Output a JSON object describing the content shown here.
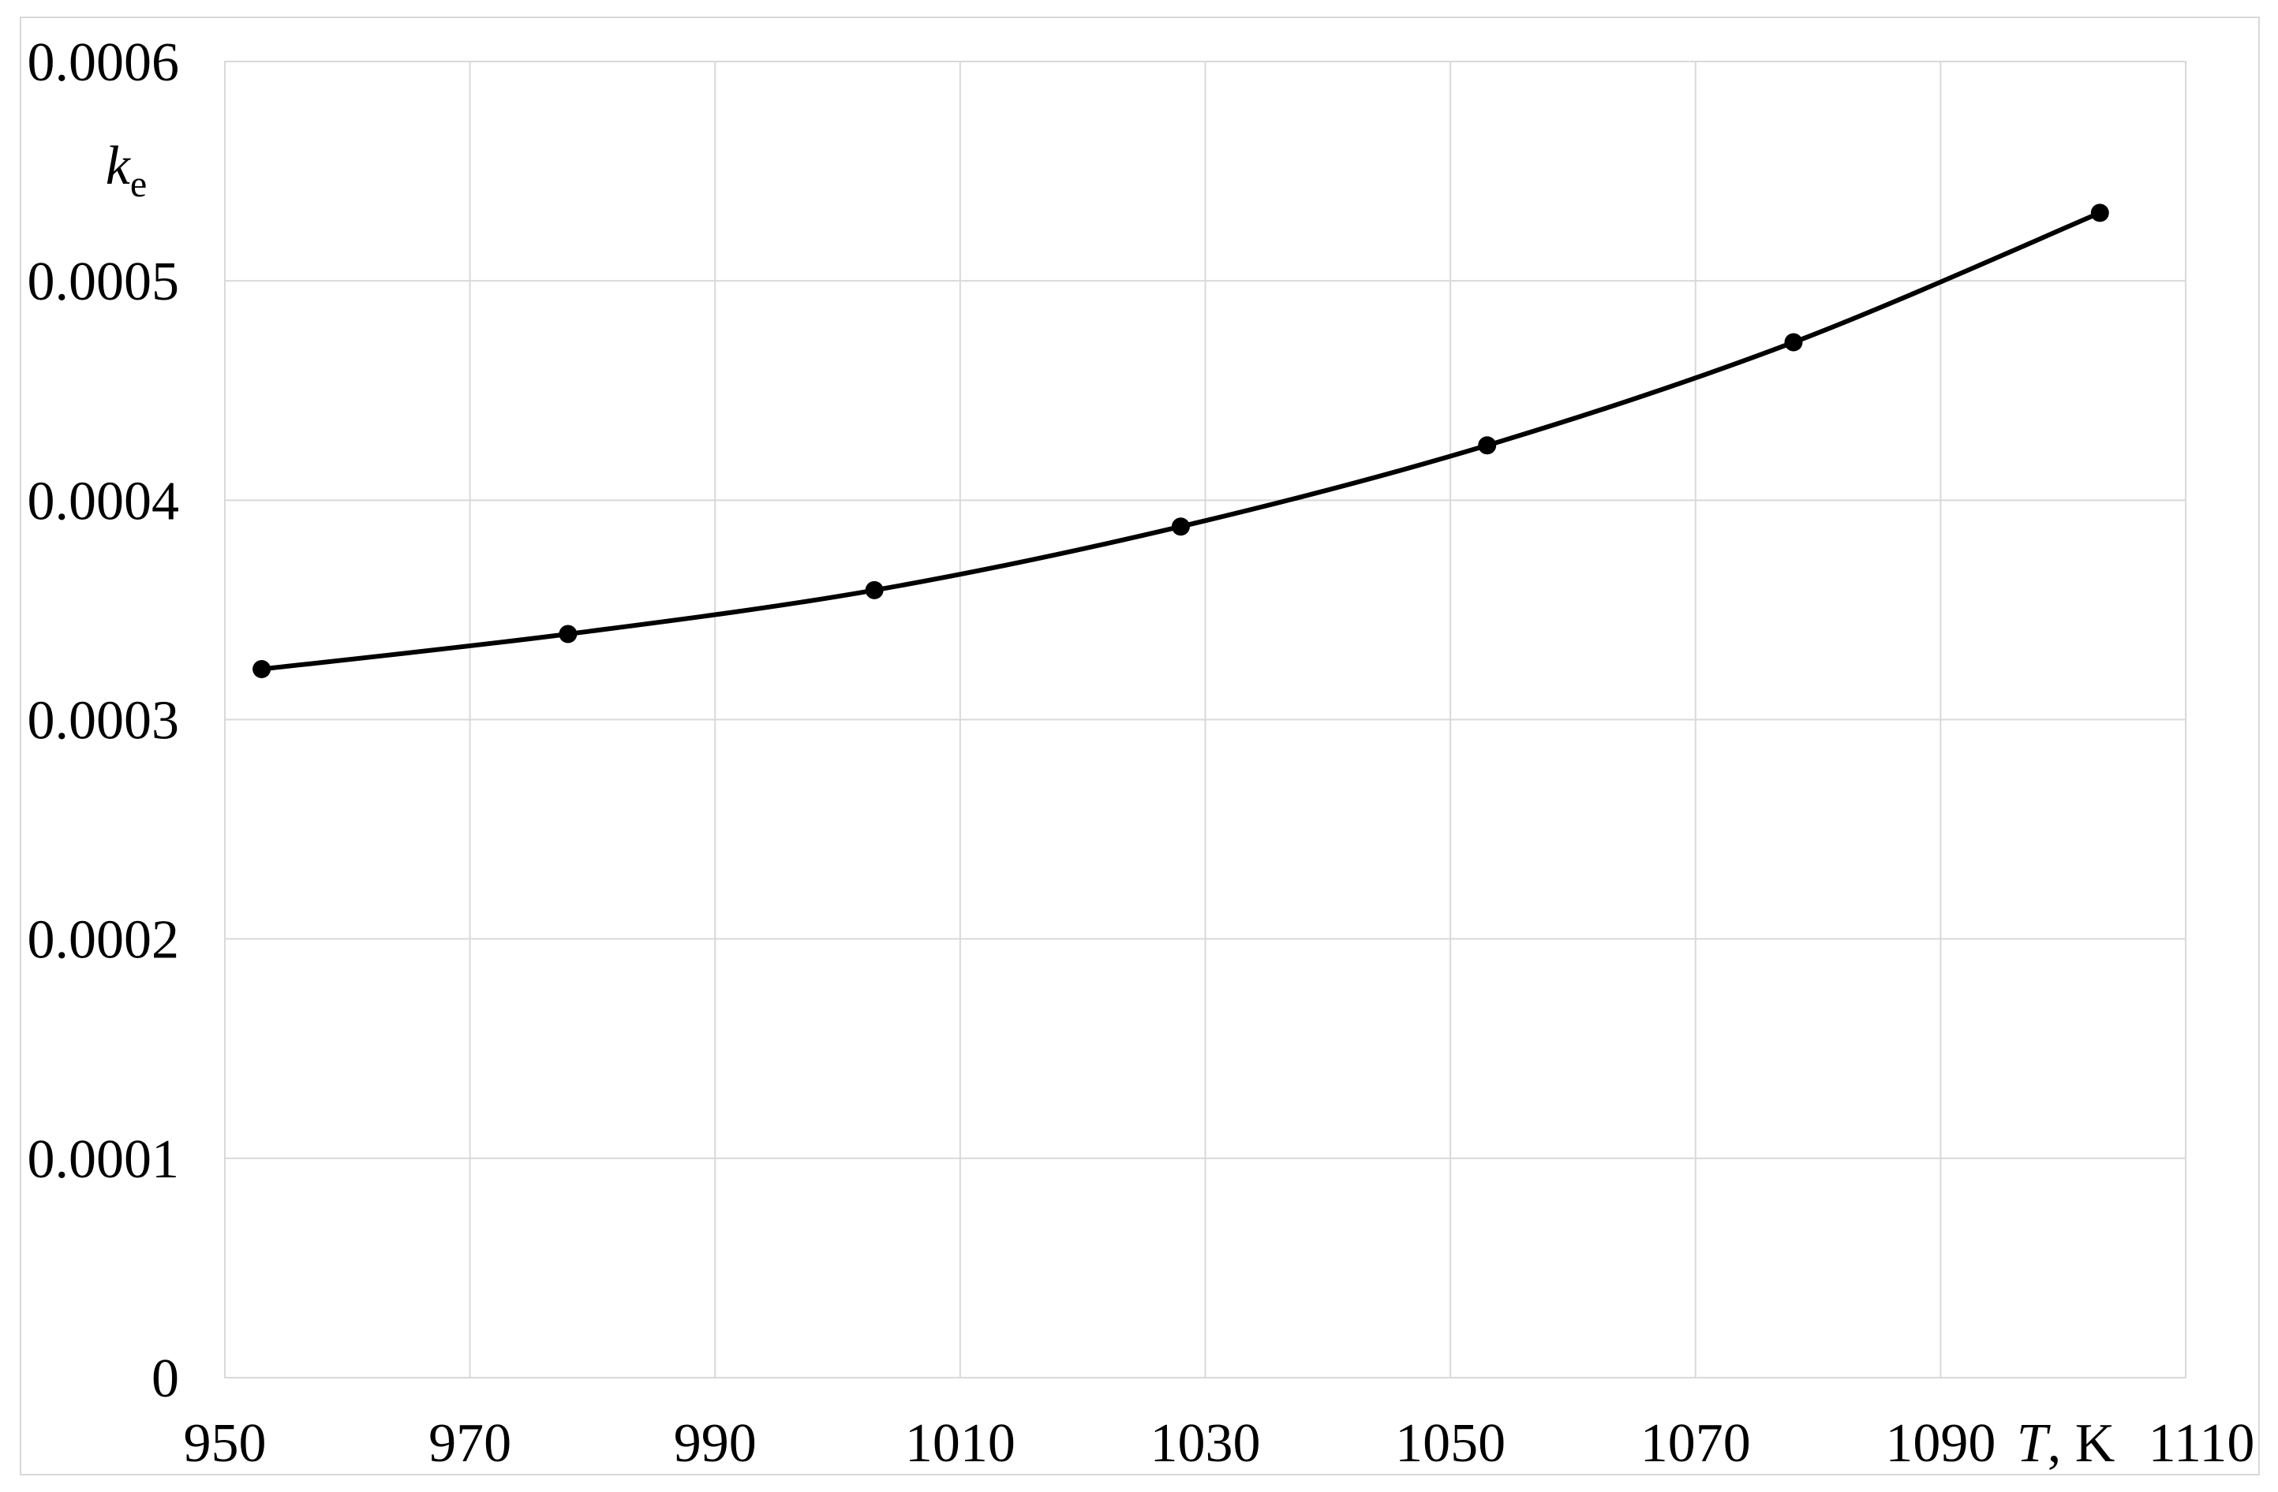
{
  "figure": {
    "background": "#ffffff",
    "outer_border_color": "#d9d9d9",
    "grid_color": "#d9d9d9",
    "plot_border_color": "#d9d9d9",
    "line_color": "#000000",
    "marker_color": "#000000",
    "text_color": "#000000"
  },
  "chart_data": {
    "type": "line",
    "title": "",
    "xlabel": "T, K",
    "ylabel": "ke",
    "ylabel_parts": {
      "main": "k",
      "sub": "e"
    },
    "xlabel_parts": {
      "italic": "T",
      "normal": ", K"
    },
    "x": [
      953,
      978,
      1003,
      1028,
      1053,
      1078,
      1103
    ],
    "series": [
      {
        "name": "ke",
        "values": [
          0.000323,
          0.000339,
          0.000359,
          0.000388,
          0.000425,
          0.000472,
          0.000531
        ]
      }
    ],
    "xlim": [
      950,
      1110
    ],
    "ylim": [
      0,
      0.0006
    ],
    "x_ticks": [
      950,
      970,
      990,
      1010,
      1030,
      1050,
      1070,
      1090,
      1110
    ],
    "x_tick_labels": [
      "950",
      "970",
      "990",
      "1010",
      "1030",
      "1050",
      "1070",
      "1090",
      "1110"
    ],
    "y_ticks": [
      0,
      0.0001,
      0.0002,
      0.0003,
      0.0004,
      0.0005,
      0.0006
    ],
    "y_tick_labels": [
      "0",
      "0.0001",
      "0.0002",
      "0.0003",
      "0.0004",
      "0.0005",
      "0.0006"
    ],
    "grid": true,
    "legend": false,
    "marker": "circle",
    "smooth": true
  }
}
